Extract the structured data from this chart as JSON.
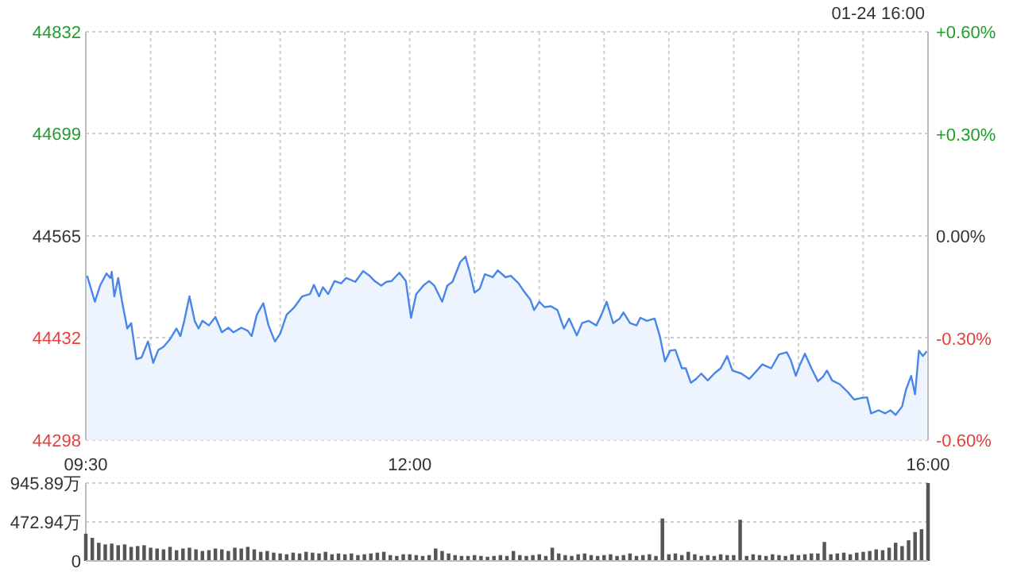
{
  "chart_data": [
    {
      "type": "area",
      "annotations": [
        "01-24 16:00"
      ],
      "grid": true,
      "xlim": [
        9.5,
        16
      ],
      "xticks": [
        {
          "value": 9.5,
          "label": "09:30"
        },
        {
          "value": 10,
          "label": null
        },
        {
          "value": 10.5,
          "label": null
        },
        {
          "value": 11,
          "label": null
        },
        {
          "value": 11.5,
          "label": null
        },
        {
          "value": 12,
          "label": "12:00"
        },
        {
          "value": 12.5,
          "label": null
        },
        {
          "value": 13,
          "label": null
        },
        {
          "value": 13.5,
          "label": null
        },
        {
          "value": 14,
          "label": null
        },
        {
          "value": 14.5,
          "label": null
        },
        {
          "value": 15,
          "label": null
        },
        {
          "value": 15.5,
          "label": null
        },
        {
          "value": 16,
          "label": "16:00"
        }
      ],
      "ylim": [
        44298,
        44832
      ],
      "yticks": [
        44298,
        44432,
        44565,
        44699,
        44832
      ],
      "y2lim": [
        -0.6,
        0.6
      ],
      "y2ticks": [
        {
          "value": -0.6,
          "label": "-0.60%"
        },
        {
          "value": -0.3,
          "label": "-0.30%"
        },
        {
          "value": 0,
          "label": "0.00%"
        },
        {
          "value": 0.3,
          "label": "+0.30%"
        },
        {
          "value": 0.6,
          "label": "+0.60%"
        }
      ],
      "x": [
        9.51,
        9.54,
        9.57,
        9.61,
        9.66,
        9.69,
        9.7,
        9.72,
        9.75,
        9.78,
        9.82,
        9.85,
        9.89,
        9.93,
        9.98,
        10.02,
        10.06,
        10.1,
        10.15,
        10.2,
        10.23,
        10.26,
        10.3,
        10.34,
        10.37,
        10.4,
        10.45,
        10.5,
        10.55,
        10.6,
        10.64,
        10.7,
        10.75,
        10.78,
        10.82,
        10.87,
        10.91,
        10.96,
        11.0,
        11.05,
        11.11,
        11.17,
        11.23,
        11.26,
        11.3,
        11.33,
        11.37,
        11.42,
        11.47,
        11.51,
        11.58,
        11.64,
        11.69,
        11.73,
        11.78,
        11.82,
        11.86,
        11.92,
        11.97,
        12.01,
        12.05,
        12.11,
        12.15,
        12.19,
        12.25,
        12.29,
        12.33,
        12.39,
        12.43,
        12.46,
        12.5,
        12.54,
        12.58,
        12.64,
        12.68,
        12.74,
        12.78,
        12.84,
        12.88,
        12.93,
        12.96,
        13.0,
        13.04,
        13.09,
        13.14,
        13.19,
        13.23,
        13.29,
        13.33,
        13.38,
        13.44,
        13.48,
        13.52,
        13.57,
        13.62,
        13.65,
        13.7,
        13.75,
        13.78,
        13.83,
        13.89,
        13.93,
        13.97,
        14.01,
        14.05,
        14.1,
        14.13,
        14.17,
        14.21,
        14.25,
        14.3,
        14.35,
        14.4,
        14.45,
        14.49,
        14.56,
        14.62,
        14.68,
        14.72,
        14.79,
        14.85,
        14.91,
        14.94,
        14.98,
        15.01,
        15.05,
        15.1,
        15.15,
        15.19,
        15.22,
        15.26,
        15.32,
        15.38,
        15.43,
        15.48,
        15.53,
        15.56,
        15.62,
        15.67,
        15.71,
        15.75,
        15.8,
        15.83,
        15.87,
        15.9,
        15.93,
        15.96,
        15.99
      ],
      "series": [
        {
          "color": "#4a86e8",
          "values": [
            44513,
            44496,
            44479,
            44500,
            44516,
            44510,
            44518,
            44486,
            44510,
            44479,
            44444,
            44451,
            44404,
            44406,
            44427,
            44399,
            44416,
            44420,
            44430,
            44444,
            44434,
            44454,
            44486,
            44454,
            44444,
            44454,
            44448,
            44459,
            44439,
            44445,
            44439,
            44445,
            44441,
            44434,
            44462,
            44477,
            44448,
            44427,
            44437,
            44462,
            44472,
            44486,
            44489,
            44501,
            44486,
            44498,
            44489,
            44506,
            44503,
            44510,
            44505,
            44519,
            44513,
            44506,
            44500,
            44505,
            44506,
            44517,
            44506,
            44458,
            44489,
            44501,
            44506,
            44500,
            44479,
            44500,
            44505,
            44531,
            44538,
            44520,
            44491,
            44496,
            44515,
            44511,
            44520,
            44511,
            44513,
            44503,
            44493,
            44482,
            44468,
            44479,
            44472,
            44473,
            44468,
            44444,
            44457,
            44435,
            44451,
            44454,
            44448,
            44462,
            44479,
            44451,
            44457,
            44465,
            44451,
            44448,
            44458,
            44454,
            44457,
            44434,
            44401,
            44415,
            44416,
            44392,
            44392,
            44373,
            44378,
            44385,
            44376,
            44385,
            44392,
            44408,
            44389,
            44385,
            44378,
            44389,
            44397,
            44392,
            44410,
            44413,
            44403,
            44382,
            44396,
            44411,
            44392,
            44375,
            44381,
            44389,
            44376,
            44371,
            44361,
            44351,
            44353,
            44354,
            44333,
            44337,
            44333,
            44337,
            44331,
            44342,
            44364,
            44382,
            44358,
            44415,
            44408,
            44414
          ]
        }
      ]
    },
    {
      "type": "bar",
      "color": "#555555",
      "grid": "y",
      "tick_labels": "y",
      "xlim": [
        9.5,
        16
      ],
      "ylim": [
        0,
        945.89
      ],
      "yticks": [
        0,
        {
          "value": 472.94,
          "label": "472.94万"
        },
        {
          "value": 945.89,
          "label": "945.89万"
        }
      ],
      "x": [
        9.5,
        9.55,
        9.6,
        9.65,
        9.7,
        9.75,
        9.8,
        9.85,
        9.9,
        9.95,
        10,
        10.05,
        10.1,
        10.15,
        10.2,
        10.25,
        10.3,
        10.35,
        10.4,
        10.45,
        10.5,
        10.55,
        10.6,
        10.65,
        10.7,
        10.75,
        10.8,
        10.85,
        10.9,
        10.95,
        11,
        11.05,
        11.1,
        11.15,
        11.2,
        11.25,
        11.3,
        11.35,
        11.4,
        11.45,
        11.5,
        11.55,
        11.6,
        11.65,
        11.7,
        11.75,
        11.8,
        11.85,
        11.9,
        11.95,
        12,
        12.05,
        12.1,
        12.15,
        12.2,
        12.25,
        12.3,
        12.35,
        12.4,
        12.45,
        12.5,
        12.55,
        12.6,
        12.65,
        12.7,
        12.75,
        12.8,
        12.85,
        12.9,
        12.95,
        13,
        13.05,
        13.1,
        13.15,
        13.2,
        13.25,
        13.3,
        13.35,
        13.4,
        13.45,
        13.5,
        13.55,
        13.6,
        13.65,
        13.7,
        13.75,
        13.8,
        13.85,
        13.9,
        13.95,
        14,
        14.05,
        14.1,
        14.15,
        14.2,
        14.25,
        14.3,
        14.35,
        14.4,
        14.45,
        14.5,
        14.55,
        14.6,
        14.65,
        14.7,
        14.75,
        14.8,
        14.85,
        14.9,
        14.95,
        15,
        15.05,
        15.1,
        15.15,
        15.2,
        15.25,
        15.3,
        15.35,
        15.4,
        15.45,
        15.5,
        15.55,
        15.6,
        15.65,
        15.7,
        15.75,
        15.8,
        15.85,
        15.9,
        15.95,
        16
      ],
      "values": [
        330,
        280,
        220,
        200,
        210,
        190,
        200,
        170,
        180,
        190,
        160,
        150,
        140,
        170,
        130,
        150,
        160,
        140,
        120,
        130,
        150,
        140,
        120,
        160,
        150,
        170,
        140,
        110,
        120,
        100,
        90,
        80,
        100,
        90,
        110,
        100,
        90,
        110,
        80,
        90,
        80,
        90,
        70,
        80,
        90,
        100,
        110,
        70,
        60,
        80,
        80,
        70,
        60,
        70,
        150,
        120,
        90,
        70,
        60,
        60,
        70,
        60,
        50,
        60,
        70,
        60,
        120,
        70,
        60,
        70,
        80,
        60,
        160,
        90,
        70,
        60,
        80,
        90,
        70,
        60,
        70,
        80,
        60,
        70,
        90,
        60,
        70,
        80,
        60,
        515,
        80,
        90,
        70,
        110,
        80,
        60,
        70,
        60,
        80,
        70,
        70,
        500,
        60,
        80,
        70,
        60,
        80,
        70,
        60,
        80,
        70,
        80,
        90,
        90,
        230,
        80,
        90,
        100,
        80,
        100,
        110,
        120,
        140,
        130,
        160,
        220,
        180,
        250,
        350,
        385,
        945.89
      ]
    }
  ]
}
